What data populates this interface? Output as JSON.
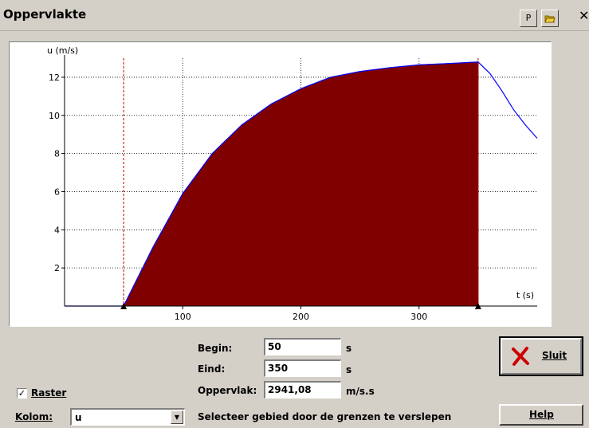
{
  "window": {
    "title": "Oppervlakte",
    "btn_p": "P",
    "close_label": "✕"
  },
  "form": {
    "begin_label": "Begin:",
    "begin_value": "50",
    "begin_unit": "s",
    "eind_label": "Eind:",
    "eind_value": "350",
    "eind_unit": "s",
    "oppervlak_label": "Oppervlak:",
    "oppervlak_value": "2941,08",
    "oppervlak_unit": "m/s.s"
  },
  "buttons": {
    "sluit_label": "Sluit",
    "help_label": "Help"
  },
  "options": {
    "raster_label": "Raster",
    "raster_checked": true,
    "kolom_label": "Kolom:",
    "kolom_value": "u"
  },
  "hint": "Selecteer gebied door de grenzen te verslepen",
  "colors": {
    "area": "#800000",
    "curve": "#0000ff",
    "boundary": "#c00000"
  },
  "chart_data": {
    "type": "area",
    "ylabel": "u (m/s)",
    "xlabel": "t (s)",
    "xlim": [
      0,
      400
    ],
    "ylim": [
      0,
      13
    ],
    "xticks": [
      100,
      200,
      300
    ],
    "yticks": [
      2,
      4,
      6,
      8,
      10,
      12
    ],
    "grid": true,
    "boundaries": [
      50,
      350
    ],
    "x": [
      0,
      50,
      75,
      100,
      125,
      150,
      175,
      200,
      225,
      250,
      275,
      300,
      325,
      350,
      360,
      370,
      380,
      390,
      400
    ],
    "y": [
      0,
      0,
      3.1,
      5.9,
      8.0,
      9.5,
      10.6,
      11.4,
      12.0,
      12.3,
      12.5,
      12.65,
      12.72,
      12.8,
      12.2,
      11.3,
      10.3,
      9.5,
      8.8
    ]
  }
}
